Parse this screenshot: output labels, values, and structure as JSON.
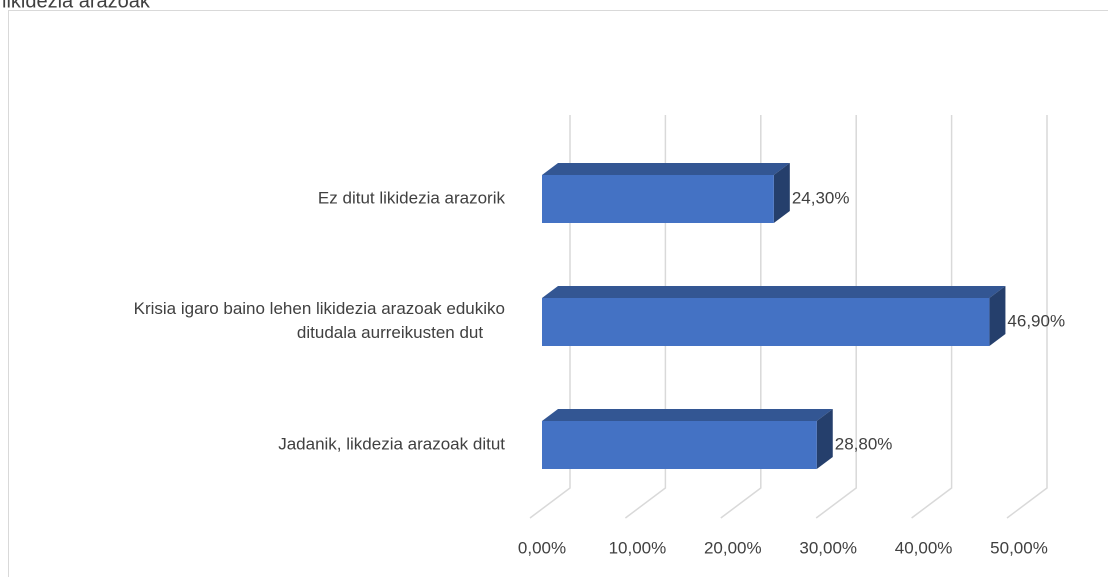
{
  "chart_data": {
    "type": "bar3d_horizontal",
    "title": "likidezia arazoak",
    "categories": [
      "Jadanik, likdezia arazoak ditut",
      "Krisia igaro baino lehen likidezia arazoak edukiko ditudala aurreikusten dut",
      "Ez ditut likidezia arazorik"
    ],
    "values": [
      28.8,
      46.9,
      24.3
    ],
    "value_labels": [
      "28,80%",
      "46,90%",
      "24,30%"
    ],
    "color": "#4472c4",
    "xlim": [
      0,
      50
    ],
    "xticks": [
      {
        "value": 0,
        "label": "0,00%"
      },
      {
        "value": 10,
        "label": "10,00%"
      },
      {
        "value": 20,
        "label": "20,00%"
      },
      {
        "value": 30,
        "label": "30,00%"
      },
      {
        "value": 40,
        "label": "40,00%"
      },
      {
        "value": 50,
        "label": "50,00%"
      }
    ],
    "grid": true
  }
}
